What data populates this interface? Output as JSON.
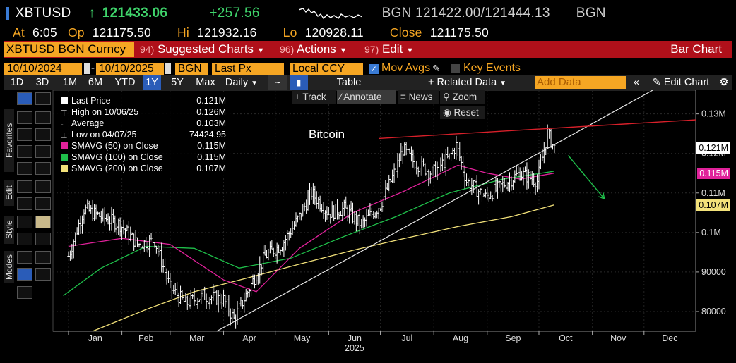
{
  "quote": {
    "ticker": "XBTUSD",
    "arrow": "↑",
    "last": "121433.06",
    "change": "+257.56",
    "source1": "BGN",
    "bid_ask": "121422.00/121444.13",
    "source2": "BGN",
    "at_label": "At",
    "time": "6:05",
    "op_label": "Op",
    "open": "121175.50",
    "hi_label": "Hi",
    "high": "121932.16",
    "lo_label": "Lo",
    "low": "120928.11",
    "close_label": "Close",
    "close": "121175.50"
  },
  "menubar": {
    "security": "XBTUSD BGN Curncy",
    "suggested_num": "94)",
    "suggested": "Suggested Charts",
    "actions_num": "96)",
    "actions": "Actions",
    "edit_num": "97)",
    "edit": "Edit",
    "title": "Bar Chart"
  },
  "params": {
    "start_date": "10/10/2024",
    "end_date": "10/10/2025",
    "source": "BGN",
    "field": "Last Px",
    "currency": "Local CCY",
    "mov_avgs": "Mov Avgs",
    "key_events": "Key Events"
  },
  "periodbar": {
    "periods": [
      "1D",
      "3D",
      "1M",
      "6M",
      "YTD",
      "1Y",
      "5Y",
      "Max"
    ],
    "selected": "1Y",
    "interval": "Daily",
    "table": "Table",
    "related": "Related Data",
    "add_placeholder": "Add Data",
    "edit_chart": "Edit Chart"
  },
  "floating": {
    "track": "Track",
    "annotate": "Annotate",
    "news": "News",
    "zoom": "Zoom",
    "reset": "Reset"
  },
  "sidetabs": {
    "favorites": "Favorites",
    "edit": "Edit",
    "style": "Style",
    "modes": "Modes"
  },
  "legend": [
    {
      "label": "Last Price",
      "value": "0.121M",
      "color": "#ffffff",
      "kind": "box"
    },
    {
      "label": "High on 10/06/25",
      "value": "0.126M",
      "kind": "high"
    },
    {
      "label": "Average",
      "value": "0.103M",
      "kind": "avg"
    },
    {
      "label": "Low on 04/07/25",
      "value": "74424.95",
      "kind": "low"
    },
    {
      "label": "SMAVG (50)  on Close",
      "value": "0.115M",
      "color": "#e0219a",
      "kind": "box"
    },
    {
      "label": "SMAVG (100)  on Close",
      "value": "0.115M",
      "color": "#1fbf4a",
      "kind": "box"
    },
    {
      "label": "SMAVG (200)  on Close",
      "value": "0.107M",
      "color": "#f3e27a",
      "kind": "box"
    }
  ],
  "chart_data": {
    "type": "bar",
    "title": "Bitcoin",
    "x_months": [
      "Jan",
      "Feb",
      "Mar",
      "Apr",
      "May",
      "Jun",
      "Jul",
      "Aug",
      "Sep",
      "Oct",
      "Nov",
      "Dec"
    ],
    "x_year": "2025",
    "y_ticks": [
      "0.13M",
      "0.12M",
      "0.11M",
      "0.1M",
      "90000",
      "80000"
    ],
    "y_tick_values": [
      130000,
      120000,
      110000,
      100000,
      90000,
      80000
    ],
    "ylim": [
      75000,
      136000
    ],
    "price_dates": [
      "2025-01-01",
      "2025-01-10",
      "2025-01-20",
      "2025-01-31",
      "2025-02-10",
      "2025-02-20",
      "2025-03-01",
      "2025-03-10",
      "2025-03-20",
      "2025-04-01",
      "2025-04-07",
      "2025-04-15",
      "2025-04-25",
      "2025-05-05",
      "2025-05-15",
      "2025-05-22",
      "2025-06-01",
      "2025-06-10",
      "2025-06-20",
      "2025-07-01",
      "2025-07-10",
      "2025-07-14",
      "2025-07-20",
      "2025-07-31",
      "2025-08-10",
      "2025-08-14",
      "2025-08-20",
      "2025-08-31",
      "2025-09-10",
      "2025-09-20",
      "2025-09-30",
      "2025-10-06",
      "2025-10-10"
    ],
    "price_values": [
      94000,
      106000,
      104000,
      102000,
      97000,
      98000,
      86000,
      82000,
      84000,
      83000,
      78000,
      85000,
      94000,
      97000,
      104000,
      110000,
      105000,
      106000,
      102000,
      107000,
      116000,
      121000,
      118000,
      115000,
      119000,
      122000,
      113000,
      109000,
      112000,
      115000,
      113000,
      125000,
      121400
    ],
    "sma50_dates": [
      "2025-01-01",
      "2025-02-01",
      "2025-03-01",
      "2025-04-01",
      "2025-04-20",
      "2025-05-15",
      "2025-06-15",
      "2025-07-15",
      "2025-08-15",
      "2025-09-01",
      "2025-09-20",
      "2025-10-10"
    ],
    "sma50_values": [
      96500,
      98500,
      97000,
      88000,
      85000,
      96000,
      105000,
      110500,
      117000,
      115000,
      113500,
      115000
    ],
    "sma100_dates": [
      "2024-12-29",
      "2025-01-20",
      "2025-02-15",
      "2025-03-15",
      "2025-04-10",
      "2025-05-10",
      "2025-06-10",
      "2025-07-10",
      "2025-08-10",
      "2025-09-10",
      "2025-10-10"
    ],
    "sma100_values": [
      84000,
      91000,
      96500,
      96000,
      91000,
      93500,
      99000,
      104000,
      110000,
      113500,
      115500
    ],
    "sma200_dates": [
      "2025-01-15",
      "2025-02-15",
      "2025-03-15",
      "2025-04-15",
      "2025-05-15",
      "2025-06-15",
      "2025-07-15",
      "2025-08-15",
      "2025-09-15",
      "2025-10-10"
    ],
    "sma200_values": [
      75000,
      80500,
      85000,
      88500,
      92000,
      95500,
      98500,
      101500,
      104000,
      107000
    ],
    "trendline_white": {
      "from": [
        "2025-03-28",
        75000
      ],
      "to": [
        "2025-12-06",
        136000
      ]
    },
    "trendline_red": {
      "from": [
        "2025-06-30",
        123800
      ],
      "to": [
        "2025-12-31",
        128500
      ]
    },
    "arrow_green": {
      "from": [
        "2025-10-18",
        119500
      ],
      "to": [
        "2025-11-08",
        108500
      ]
    },
    "badges": [
      {
        "text": "0.121M",
        "value": 121400,
        "bg": "#ffffff",
        "fg": "#000000"
      },
      {
        "text": "0.115M",
        "value": 115000,
        "bg": "#e0219a",
        "fg": "#ffffff"
      },
      {
        "text": "0.107M",
        "value": 107000,
        "bg": "#f3e27a",
        "fg": "#000000"
      }
    ],
    "colors": {
      "price": "#ffffff",
      "sma50": "#e0219a",
      "sma100": "#1fbf4a",
      "sma200": "#f3e27a",
      "red_line": "#d8202a",
      "arrow": "#1fbf4a"
    }
  }
}
